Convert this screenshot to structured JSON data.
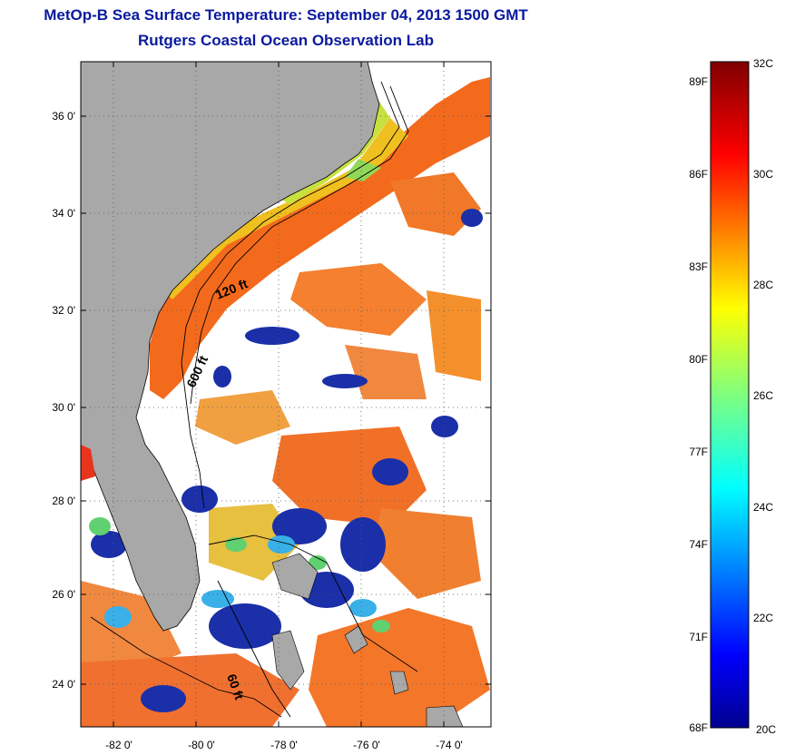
{
  "header": {
    "title": "MetOp-B Sea Surface Temperature:  September 04, 2013 1500 GMT",
    "subtitle": "Rutgers Coastal Ocean Observation Lab"
  },
  "map": {
    "lat_ticks": [
      "36 0'",
      "34 0'",
      "32 0'",
      "30 0'",
      "28 0'",
      "26 0'",
      "24 0'"
    ],
    "lon_ticks": [
      "-82 0'",
      "-80 0'",
      "-78 0'",
      "-76 0'",
      "-74 0'"
    ],
    "contour_labels": [
      "120 ft",
      "600 ft",
      "60 ft"
    ],
    "colors": {
      "land": "#a8a8a8",
      "cloud": "#ffffff",
      "gulf_stream": "#f46a1c",
      "shelf_warm": "#f0c020",
      "coastal_green": "#b8e040",
      "cold_patch": "#1a2fa8"
    }
  },
  "colorbar": {
    "fahrenheit_labels": [
      "89F",
      "86F",
      "83F",
      "80F",
      "77F",
      "74F",
      "71F",
      "68F"
    ],
    "celsius_labels": [
      "32C",
      "30C",
      "28C",
      "26C",
      "24C",
      "22C",
      "20C"
    ],
    "range_c": [
      20,
      32
    ]
  }
}
